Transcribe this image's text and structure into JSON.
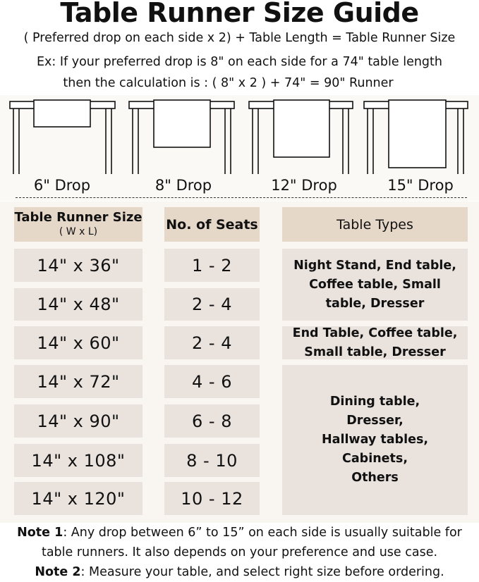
{
  "title": "Table Runner Size Guide",
  "formula": "( Preferred drop on each side x 2) + Table Length = Table Runner Size",
  "example_line1": "Ex: If your preferred drop is 8\" on each side for a 74\" table length",
  "example_line2": "then the calculation is : ( 8\" x 2 ) + 74\" = 90\" Runner",
  "drops": [
    "6\" Drop",
    "8\" Drop",
    "12\" Drop",
    "15\" Drop"
  ],
  "headers": {
    "size": "Table Runner Size",
    "size_sub": "( W x L)",
    "seats": "No. of Seats",
    "types": "Table Types"
  },
  "rows": [
    {
      "size": "14\" x 36\"",
      "seats": "1 - 2"
    },
    {
      "size": "14\" x 48\"",
      "seats": "2 - 4"
    },
    {
      "size": "14\" x 60\"",
      "seats": "2 - 4"
    },
    {
      "size": "14\" x 72\"",
      "seats": "4 - 6"
    },
    {
      "size": "14\" x 90\"",
      "seats": "6 - 8"
    },
    {
      "size": "14\" x 108\"",
      "seats": "8 - 10"
    },
    {
      "size": "14\" x 120\"",
      "seats": "10 - 12"
    }
  ],
  "types": [
    "Night Stand, End table, Coffee table, Small table, Dresser",
    "End Table, Coffee table, Small table, Dresser",
    "Dining table, Dresser, Hallway tables, Cabinets, Others"
  ],
  "notes": {
    "n1_label": "Note 1",
    "n1_text": ": Any drop between 6” to 15” on each side is usually suitable for",
    "n1_text2": "table runners. It also depends on your preference and use case.",
    "n2_label": "Note 2",
    "n2_text": ": Measure your table, and select right size before ordering."
  },
  "colors": {
    "header": "#e6d8c9",
    "cell": "#e9e2dd",
    "panel": "#f9f5f1"
  }
}
